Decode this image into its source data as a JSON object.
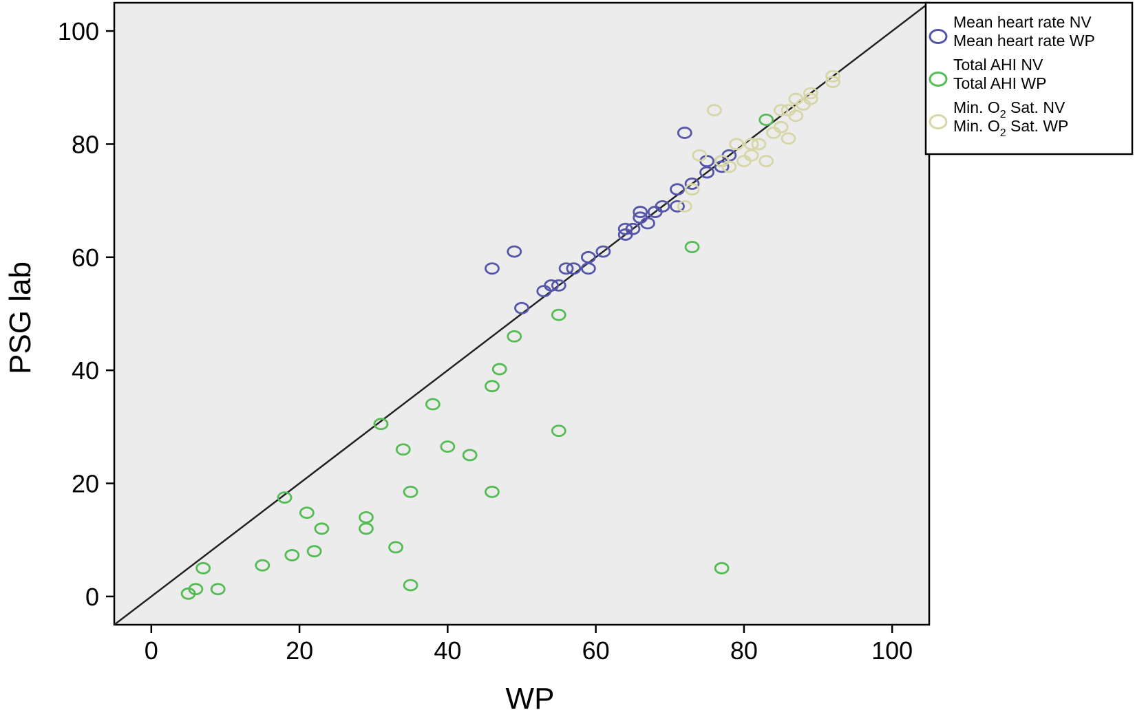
{
  "chart_data": {
    "type": "scatter",
    "title": "",
    "xlabel": "WP",
    "ylabel": "PSG lab",
    "xlim": [
      -5,
      105
    ],
    "ylim": [
      -5,
      105
    ],
    "xticks": [
      0,
      20,
      40,
      60,
      80,
      100
    ],
    "yticks": [
      0,
      20,
      40,
      60,
      80,
      100
    ],
    "tick_labels_x": [
      "0",
      "20",
      "40",
      "60",
      "80",
      "100"
    ],
    "tick_labels_y": [
      "0",
      "20",
      "40",
      "60",
      "80",
      "100"
    ],
    "grid": false,
    "background": "#ececec",
    "reference_line": "identity",
    "legend_position": "top-right, outside plot",
    "legend": [
      {
        "lines": [
          "Mean heart rate NV",
          "Mean heart rate WP"
        ],
        "color": "#5555aa"
      },
      {
        "lines": [
          "Total AHI NV",
          "Total AHI WP"
        ],
        "color": "#55bb55"
      },
      {
        "lines": [
          [
            "Min. O",
            "2",
            " Sat. NV"
          ],
          [
            "Min. O",
            "2",
            " Sat. WP"
          ]
        ],
        "color": "#d6d6a8"
      }
    ],
    "series": [
      {
        "name": "Mean heart rate",
        "color": "#5555aa",
        "points": [
          [
            46,
            58
          ],
          [
            49,
            61
          ],
          [
            50,
            51
          ],
          [
            53,
            54
          ],
          [
            54,
            55
          ],
          [
            55,
            55
          ],
          [
            56,
            58
          ],
          [
            57,
            58
          ],
          [
            59,
            58
          ],
          [
            59,
            60
          ],
          [
            61,
            61
          ],
          [
            64,
            64
          ],
          [
            64,
            65
          ],
          [
            65,
            65
          ],
          [
            66,
            67
          ],
          [
            66,
            68
          ],
          [
            67,
            66
          ],
          [
            68,
            68
          ],
          [
            69,
            69
          ],
          [
            71,
            72
          ],
          [
            71,
            69
          ],
          [
            72,
            82
          ],
          [
            73,
            73
          ],
          [
            75,
            75
          ],
          [
            75,
            77
          ],
          [
            77,
            76
          ],
          [
            77,
            77
          ],
          [
            78,
            78
          ]
        ]
      },
      {
        "name": "Total AHI",
        "color": "#55bb55",
        "points": [
          [
            5,
            0.5
          ],
          [
            6,
            1.3
          ],
          [
            7,
            5
          ],
          [
            9,
            1.3
          ],
          [
            15,
            5.5
          ],
          [
            18,
            17.5
          ],
          [
            19,
            7.3
          ],
          [
            21,
            14.8
          ],
          [
            22,
            8
          ],
          [
            23,
            12
          ],
          [
            29,
            12
          ],
          [
            29,
            14
          ],
          [
            31,
            30.5
          ],
          [
            33,
            8.7
          ],
          [
            34,
            26
          ],
          [
            35,
            2
          ],
          [
            35,
            18.5
          ],
          [
            38,
            34
          ],
          [
            40,
            26.5
          ],
          [
            43,
            25
          ],
          [
            46,
            18.5
          ],
          [
            46,
            37.2
          ],
          [
            47,
            40.2
          ],
          [
            49,
            46
          ],
          [
            55,
            49.8
          ],
          [
            55,
            29.3
          ],
          [
            73,
            61.8
          ],
          [
            77,
            5
          ],
          [
            83,
            84.3
          ]
        ]
      },
      {
        "name": "Min. O2 Sat.",
        "color": "#d6d6a8",
        "points": [
          [
            72,
            69
          ],
          [
            73,
            72
          ],
          [
            74,
            78
          ],
          [
            76,
            86
          ],
          [
            77,
            77
          ],
          [
            78,
            76
          ],
          [
            79,
            80
          ],
          [
            80,
            77
          ],
          [
            81,
            78
          ],
          [
            81,
            80
          ],
          [
            82,
            80
          ],
          [
            83,
            77
          ],
          [
            84,
            82
          ],
          [
            85,
            83
          ],
          [
            85,
            86
          ],
          [
            86,
            81
          ],
          [
            86,
            86
          ],
          [
            87,
            85
          ],
          [
            87,
            88
          ],
          [
            88,
            87
          ],
          [
            89,
            88
          ],
          [
            89,
            89
          ],
          [
            92,
            91
          ],
          [
            92,
            92
          ]
        ]
      }
    ]
  }
}
